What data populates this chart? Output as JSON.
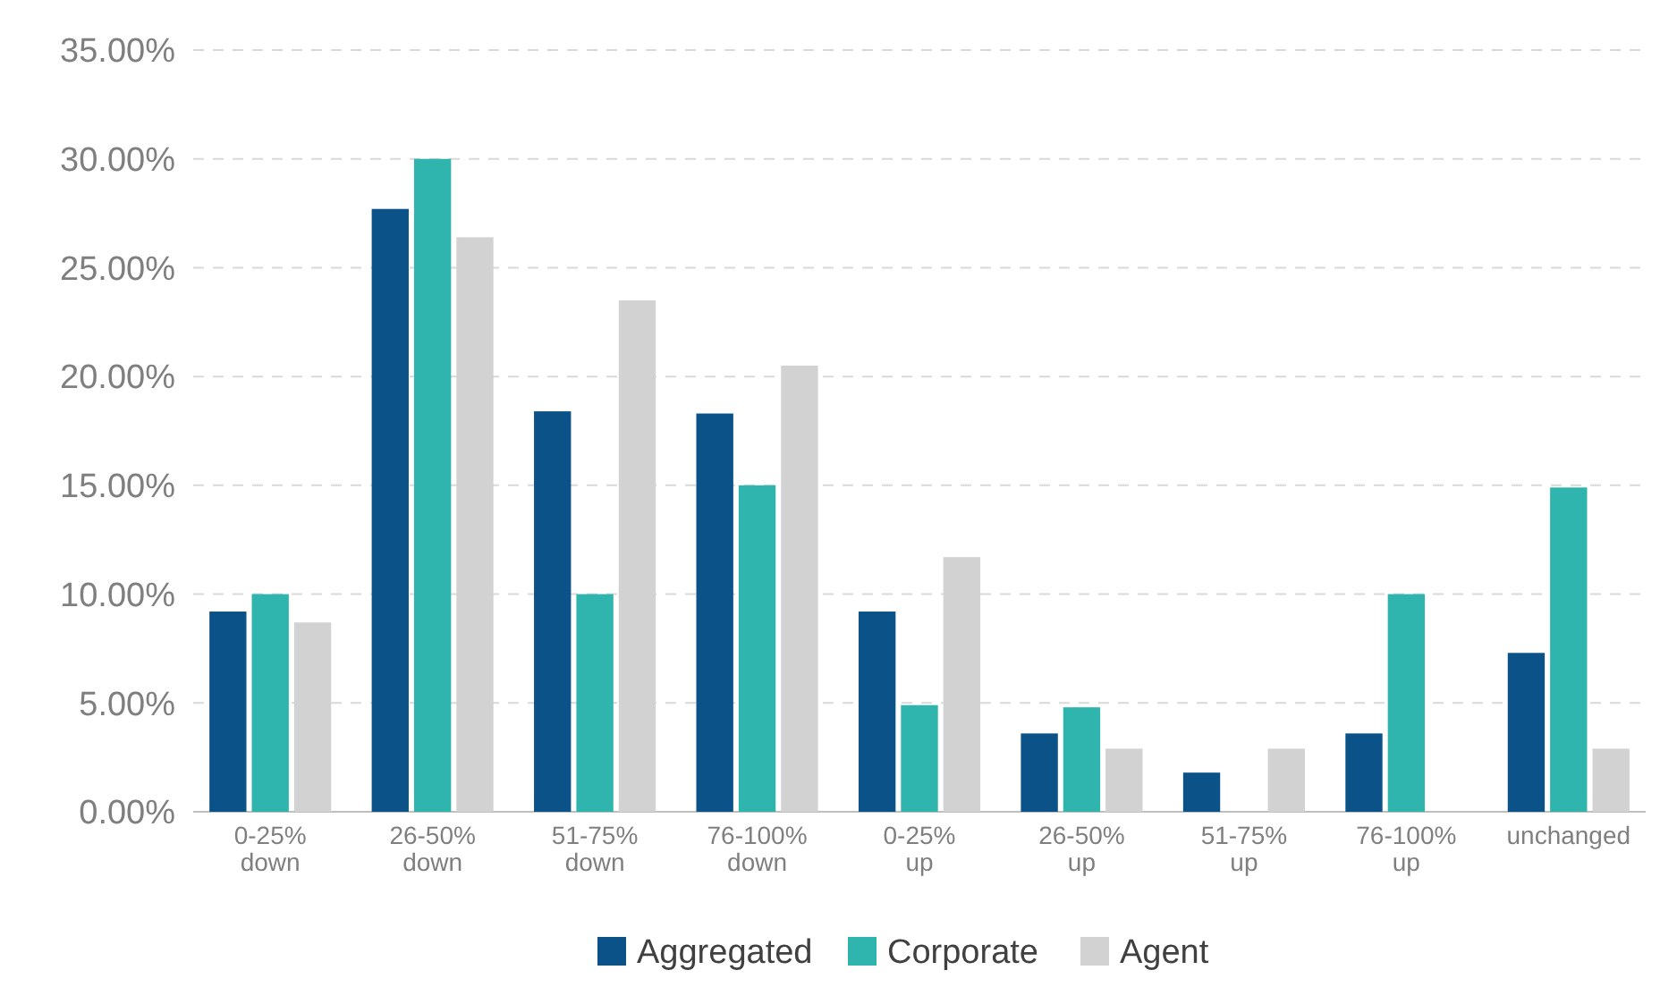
{
  "chart_data": {
    "type": "bar",
    "categories": [
      "0-25% down",
      "26-50% down",
      "51-75% down",
      "76-100% down",
      "0-25% up",
      "26-50% up",
      "51-75% up",
      "76-100% up",
      "unchanged"
    ],
    "series": [
      {
        "name": "Aggregated",
        "color": "#0b5289",
        "values": [
          9.2,
          27.7,
          18.4,
          18.3,
          9.2,
          3.6,
          1.8,
          3.6,
          7.3
        ]
      },
      {
        "name": "Corporate",
        "color": "#2fb5ad",
        "values": [
          10,
          30,
          10,
          15,
          4.9,
          4.8,
          0,
          10,
          14.9
        ]
      },
      {
        "name": "Agent",
        "color": "#d2d2d2",
        "values": [
          8.7,
          26.4,
          23.5,
          20.5,
          11.7,
          2.9,
          2.9,
          0,
          2.9
        ]
      }
    ],
    "ylim": [
      0,
      35
    ],
    "yticks": [
      {
        "value": 0,
        "label": "0.00%"
      },
      {
        "value": 5,
        "label": "5.00%"
      },
      {
        "value": 10,
        "label": "10.00%"
      },
      {
        "value": 15,
        "label": "15.00%"
      },
      {
        "value": 20,
        "label": "20.00%"
      },
      {
        "value": 25,
        "label": "25.00%"
      },
      {
        "value": 30,
        "label": "30.00%"
      },
      {
        "value": 35,
        "label": "35.00%"
      }
    ],
    "grid": "y",
    "legend": "bottom"
  }
}
